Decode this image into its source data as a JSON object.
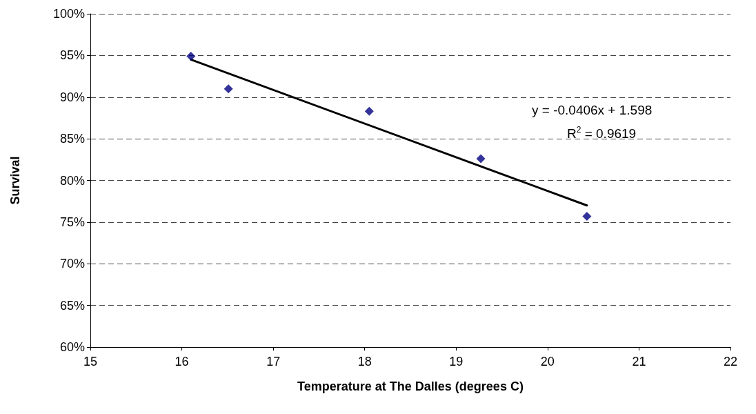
{
  "chart_data": {
    "type": "scatter",
    "xlabel": "Temperature at The Dalles (degrees C)",
    "ylabel": "Survival",
    "series": [
      {
        "color": "#000080",
        "marker": "diamond",
        "x": [
          16.1,
          16.51,
          18.05,
          19.27,
          20.43
        ],
        "values": [
          94.9,
          91.0,
          88.3,
          82.6,
          75.7
        ]
      },
      {
        "type": "line",
        "color": "#000000",
        "marker": "none",
        "line_style": "solid",
        "x": [
          16.1,
          20.43
        ],
        "values": [
          94.5,
          77.0
        ]
      }
    ],
    "xlim": [
      15,
      22
    ],
    "xticks": [
      15,
      16,
      17,
      18,
      19,
      20,
      21,
      22
    ],
    "ylim": [
      60,
      100
    ],
    "yticks": [
      {
        "value": 60,
        "label": "60%"
      },
      {
        "value": 65,
        "label": "65%"
      },
      {
        "value": 70,
        "label": "70%"
      },
      {
        "value": 75,
        "label": "75%"
      },
      {
        "value": 80,
        "label": "80%"
      },
      {
        "value": 85,
        "label": "85%"
      },
      {
        "value": 90,
        "label": "90%"
      },
      {
        "value": 95,
        "label": "95%"
      },
      {
        "value": 100,
        "label": "100%"
      }
    ],
    "grid": "y",
    "annotations": [
      "y = -0.0406x + 1.598",
      "R$^{2}$ = 0.9619"
    ]
  }
}
